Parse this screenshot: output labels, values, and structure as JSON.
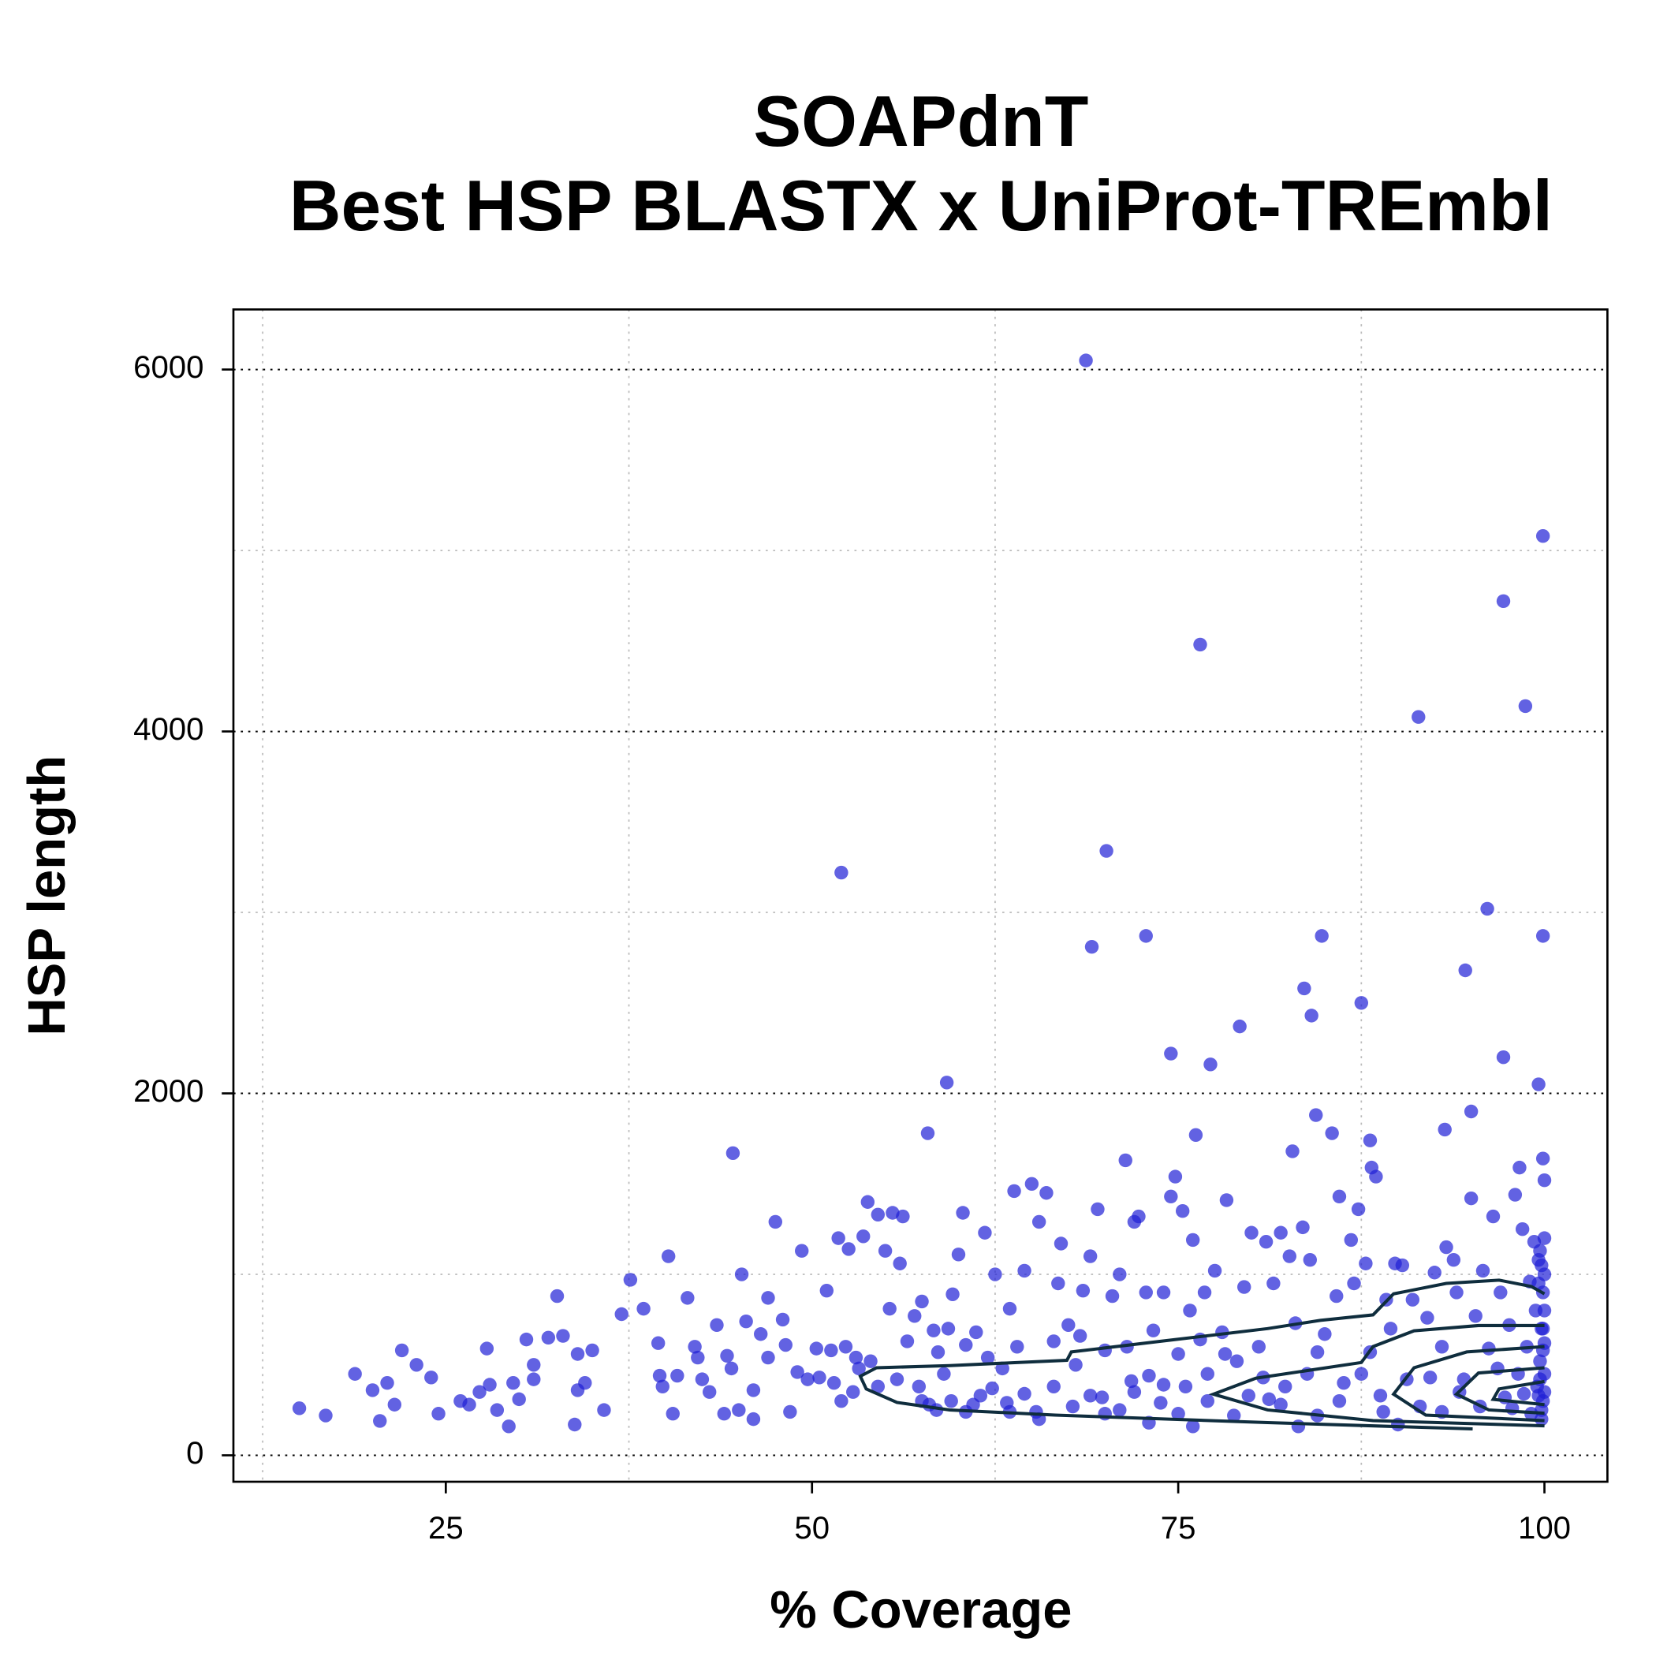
{
  "chart_data": {
    "type": "scatter",
    "title": "SOAPdnT",
    "subtitle": "Best HSP BLASTX x UniProt-TREmbl",
    "x_label": "% Coverage",
    "y_label": "HSP length",
    "color": "#1f1fd6",
    "xlim": [
      10.5,
      104.3
    ],
    "ylim": [
      -146,
      6332
    ],
    "xticks": [
      25,
      50,
      75,
      100
    ],
    "yticks": [
      0,
      2000,
      4000,
      6000
    ],
    "xgrid": [
      12.5,
      37.5,
      62.5,
      87.5
    ],
    "ygrid": [
      1000,
      3000,
      5000
    ],
    "grid": true,
    "contour_color": "#0f2d3d",
    "contours": [
      {
        "x": [
          95.1,
          81.1,
          66.6,
          59.4,
          55.8,
          53.7,
          53.3,
          54.4,
          59.4,
          67.4,
          67.7,
          73.8,
          81.1,
          84.7,
          88.3,
          89.7,
          93.3,
          96.9,
          99.1,
          100
        ],
        "y": [
          146,
          181,
          222,
          251,
          292,
          367,
          437,
          484,
          496,
          525,
          571,
          630,
          700,
          746,
          776,
          892,
          950,
          968,
          933,
          892
        ]
      },
      {
        "x": [
          100,
          95.5,
          91.1,
          88.3,
          87.5,
          80.3,
          77.4,
          81.1,
          88.3,
          100
        ],
        "y": [
          717,
          717,
          688,
          601,
          513,
          426,
          338,
          251,
          192,
          163
        ]
      },
      {
        "x": [
          100,
          94.7,
          91.1,
          89.7,
          91.9,
          100
        ],
        "y": [
          601,
          571,
          484,
          338,
          222,
          192
        ]
      },
      {
        "x": [
          100,
          95.5,
          94.0,
          96.2,
          100
        ],
        "y": [
          484,
          455,
          338,
          251,
          233
        ]
      },
      {
        "x": [
          100,
          96.9,
          96.5,
          100
        ],
        "y": [
          408,
          367,
          309,
          280
        ]
      }
    ],
    "x": [
      68.7,
      99.9,
      97.2,
      98.7,
      91.4,
      76.5,
      70.1,
      52,
      96.1,
      72.8,
      84.8,
      99.9,
      69.1,
      94.6,
      83.6,
      87.5,
      84.1,
      79.2,
      74.5,
      97.2,
      77.2,
      59.2,
      99.6,
      95,
      84.4,
      93.2,
      57.9,
      76.2,
      88.1,
      82.8,
      44.6,
      99.9,
      71.4,
      88.2,
      98.3,
      15,
      16.8,
      18.8,
      20,
      20.5,
      21,
      21.5,
      22,
      23,
      24,
      24.5,
      26,
      26.6,
      27.3,
      27.8,
      28,
      28.5,
      29.3,
      29.6,
      30,
      30.5,
      31,
      31,
      32,
      32.6,
      33,
      33.8,
      34,
      34,
      34.5,
      35,
      35.8,
      37,
      37.6,
      38.5,
      39.5,
      39.6,
      39.8,
      40.2,
      40.5,
      40.8,
      41.5,
      42,
      42.2,
      42.5,
      43,
      43.5,
      44,
      44.2,
      44.5,
      45,
      45.2,
      45.5,
      46,
      46,
      46.5,
      47,
      47,
      47.5,
      48,
      48.2,
      48.5,
      49,
      49.3,
      49.7,
      50.3,
      50.5,
      51,
      51.3,
      51.8,
      52,
      52.3,
      52.5,
      53,
      53.5,
      53.8,
      54,
      54.5,
      55,
      55.3,
      55.5,
      56,
      56.2,
      56.5,
      57,
      57.3,
      57.5,
      58,
      58.3,
      58.6,
      59,
      59.3,
      59.6,
      60,
      60.3,
      60.5,
      61,
      61.2,
      61.8,
      62,
      62.5,
      63,
      63.3,
      63.5,
      63.8,
      64,
      64.5,
      65,
      65.3,
      65.5,
      66,
      66.5,
      66.8,
      67,
      67.5,
      68,
      68.3,
      68.5,
      69,
      69.5,
      69.8,
      70,
      70.5,
      71,
      71.5,
      71.8,
      72,
      72.3,
      72.8,
      73,
      73.3,
      73.8,
      74,
      74.5,
      74.8,
      75,
      75.3,
      75.5,
      75.8,
      76,
      76.5,
      76.8,
      77,
      77.5,
      78,
      78.3,
      78.8,
      79,
      79.5,
      80,
      80.5,
      81,
      81.2,
      81.5,
      82,
      82.3,
      82.6,
      83,
      83.5,
      83.8,
      84,
      84.5,
      85,
      85.5,
      85.8,
      86,
      86.3,
      86.8,
      87,
      87.3,
      87.8,
      88.1,
      88.5,
      88.8,
      89.2,
      89.5,
      89.8,
      90.3,
      90.6,
      91,
      91.5,
      92,
      92.5,
      93,
      93.3,
      93.8,
      94,
      94.5,
      95,
      95.3,
      95.8,
      96.2,
      96.5,
      97,
      97.3,
      97.6,
      98,
      98.2,
      98.5,
      98.8,
      99,
      99.1,
      99.3,
      99.4,
      99.5,
      99.6,
      99.7,
      99.8,
      99.9,
      99.9,
      100,
      100,
      100,
      100,
      99.7,
      99.8,
      98.6,
      97.8,
      96.8,
      95.6,
      94.2,
      93,
      92.2,
      90,
      89,
      87.5,
      86,
      84.5,
      83.2,
      82,
      80.8,
      79.8,
      78.2,
      77,
      76,
      75,
      74,
      73,
      72,
      71,
      70,
      69,
      67.8,
      66.5,
      65.5,
      64.5,
      63.5,
      62.3,
      61.5,
      60.5,
      59.5,
      58.5,
      57.5,
      55.8,
      54.5,
      53.2,
      52.8,
      51.5,
      99.8,
      99.6,
      100,
      99.9,
      99.7,
      100,
      99.8,
      99.9,
      100,
      99.6
    ],
    "values": [
      6050,
      5080,
      4720,
      4140,
      4080,
      4480,
      3340,
      3220,
      3020,
      2870,
      2870,
      2870,
      2810,
      2680,
      2580,
      2500,
      2430,
      2370,
      2220,
      2200,
      2160,
      2060,
      2050,
      1900,
      1880,
      1800,
      1780,
      1770,
      1740,
      1680,
      1670,
      1640,
      1630,
      1590,
      1590,
      260,
      220,
      450,
      360,
      190,
      400,
      280,
      580,
      500,
      430,
      230,
      300,
      280,
      350,
      590,
      390,
      250,
      160,
      400,
      310,
      640,
      500,
      420,
      650,
      880,
      660,
      170,
      560,
      360,
      400,
      580,
      250,
      780,
      970,
      810,
      620,
      440,
      380,
      1100,
      230,
      440,
      870,
      600,
      540,
      420,
      350,
      720,
      230,
      550,
      480,
      250,
      1000,
      740,
      360,
      200,
      670,
      540,
      870,
      1290,
      750,
      610,
      240,
      460,
      1130,
      420,
      590,
      430,
      910,
      580,
      1200,
      300,
      600,
      1140,
      540,
      1210,
      1400,
      520,
      1330,
      1130,
      810,
      1340,
      1060,
      1320,
      630,
      770,
      380,
      850,
      280,
      690,
      570,
      450,
      700,
      890,
      1110,
      1340,
      610,
      280,
      680,
      1230,
      540,
      1000,
      480,
      290,
      810,
      1460,
      600,
      1020,
      1500,
      240,
      1290,
      1450,
      630,
      950,
      1170,
      720,
      500,
      660,
      910,
      1100,
      1360,
      320,
      580,
      880,
      1000,
      600,
      410,
      1290,
      1320,
      900,
      440,
      690,
      290,
      900,
      1430,
      1540,
      560,
      1350,
      380,
      800,
      1190,
      640,
      900,
      450,
      1020,
      680,
      1410,
      220,
      520,
      930,
      1230,
      600,
      1180,
      310,
      950,
      1230,
      380,
      1100,
      730,
      1260,
      450,
      1080,
      570,
      670,
      1780,
      880,
      1430,
      400,
      1190,
      950,
      1360,
      1060,
      570,
      1540,
      330,
      860,
      700,
      1060,
      1050,
      420,
      860,
      270,
      760,
      1010,
      600,
      1150,
      1080,
      900,
      420,
      1420,
      770,
      1020,
      590,
      1320,
      900,
      320,
      720,
      1440,
      450,
      1250,
      600,
      960,
      230,
      1180,
      800,
      380,
      1080,
      520,
      700,
      300,
      900,
      1000,
      450,
      1520,
      620,
      1130,
      200,
      340,
      260,
      480,
      270,
      350,
      240,
      430,
      170,
      240,
      450,
      300,
      220,
      160,
      280,
      430,
      330,
      560,
      300,
      160,
      230,
      390,
      180,
      350,
      250,
      230,
      330,
      270,
      380,
      200,
      340,
      240,
      370,
      330,
      240,
      300,
      250,
      300,
      420,
      380,
      480,
      350,
      400,
      250,
      330,
      800,
      580,
      420,
      1200,
      1050,
      700,
      350,
      950
    ]
  }
}
